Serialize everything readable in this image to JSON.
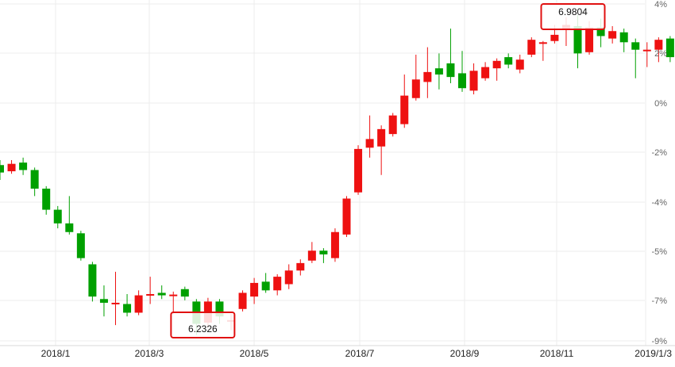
{
  "chart_data": {
    "type": "candlestick",
    "x_tick_labels": [
      "2018/1",
      "2018/3",
      "2018/5",
      "2018/7",
      "2018/9",
      "2018/11",
      "2019/1/3"
    ],
    "y_tick_labels": [
      "4%",
      "2%",
      "0%",
      "-2%",
      "-4%",
      "-5%",
      "-7%",
      "-9%"
    ],
    "ylim": [
      -9.6,
      4.0
    ],
    "grid": true,
    "up_color": "#ee1111",
    "down_color": "#00a000",
    "annotations": [
      {
        "label": "6.9804",
        "type": "high"
      },
      {
        "label": "6.2326",
        "type": "low"
      }
    ],
    "candles": [
      {
        "o": -2.5,
        "c": -2.8,
        "h": -2.3,
        "l": -3.1
      },
      {
        "o": -2.75,
        "c": -2.45,
        "h": -2.3,
        "l": -2.85
      },
      {
        "o": -2.4,
        "c": -2.7,
        "h": -2.2,
        "l": -2.9
      },
      {
        "o": -2.7,
        "c": -3.45,
        "h": -2.6,
        "l": -3.75
      },
      {
        "o": -3.45,
        "c": -4.3,
        "h": -3.35,
        "l": -4.5
      },
      {
        "o": -4.3,
        "c": -4.85,
        "h": -4.15,
        "l": -5.05
      },
      {
        "o": -4.85,
        "c": -5.2,
        "h": -3.75,
        "l": -5.3
      },
      {
        "o": -5.25,
        "c": -6.25,
        "h": -5.15,
        "l": -6.35
      },
      {
        "o": -6.5,
        "c": -7.8,
        "h": -6.4,
        "l": -8.0
      },
      {
        "o": -7.9,
        "c": -8.05,
        "h": -7.35,
        "l": -8.6
      },
      {
        "o": -8.05,
        "c": -8.05,
        "h": -6.8,
        "l": -8.95
      },
      {
        "o": -8.1,
        "c": -8.45,
        "h": -7.7,
        "l": -8.6
      },
      {
        "o": -8.45,
        "c": -7.75,
        "h": -7.55,
        "l": -8.55
      },
      {
        "o": -7.7,
        "c": -7.7,
        "h": -7.0,
        "l": -8.1
      },
      {
        "o": -7.65,
        "c": -7.75,
        "h": -7.35,
        "l": -7.9
      },
      {
        "o": -7.72,
        "c": -7.72,
        "h": -7.6,
        "l": -8.5
      },
      {
        "o": -7.5,
        "c": -7.8,
        "h": -7.4,
        "l": -7.95
      },
      {
        "o": -8.0,
        "c": -8.9,
        "h": -7.9,
        "l": -9.35
      },
      {
        "o": -8.85,
        "c": -8.0,
        "h": -7.85,
        "l": -9.05
      },
      {
        "o": -8.0,
        "c": -8.6,
        "h": -7.9,
        "l": -8.9
      },
      {
        "o": -8.75,
        "c": -8.75,
        "h": -8.5,
        "l": -9.15
      },
      {
        "o": -8.3,
        "c": -7.65,
        "h": -7.55,
        "l": -8.4
      },
      {
        "o": -7.8,
        "c": -7.25,
        "h": -7.05,
        "l": -8.1
      },
      {
        "o": -7.2,
        "c": -7.55,
        "h": -6.85,
        "l": -7.65
      },
      {
        "o": -7.55,
        "c": -7.0,
        "h": -6.9,
        "l": -7.75
      },
      {
        "o": -7.3,
        "c": -6.75,
        "h": -6.5,
        "l": -7.5
      },
      {
        "o": -6.75,
        "c": -6.45,
        "h": -6.3,
        "l": -6.95
      },
      {
        "o": -6.35,
        "c": -5.95,
        "h": -5.6,
        "l": -6.45
      },
      {
        "o": -5.95,
        "c": -6.1,
        "h": -5.85,
        "l": -6.45
      },
      {
        "o": -6.25,
        "c": -5.2,
        "h": -5.05,
        "l": -6.4
      },
      {
        "o": -5.3,
        "c": -3.85,
        "h": -3.75,
        "l": -5.4
      },
      {
        "o": -3.6,
        "c": -1.85,
        "h": -1.7,
        "l": -3.7
      },
      {
        "o": -1.8,
        "c": -1.45,
        "h": -0.5,
        "l": -2.2
      },
      {
        "o": -1.75,
        "c": -1.05,
        "h": -0.9,
        "l": -2.9
      },
      {
        "o": -1.25,
        "c": -0.5,
        "h": -0.4,
        "l": -1.35
      },
      {
        "o": -0.85,
        "c": 0.3,
        "h": 1.15,
        "l": -1.0
      },
      {
        "o": 0.2,
        "c": 0.95,
        "h": 1.95,
        "l": 0.1
      },
      {
        "o": 0.85,
        "c": 1.25,
        "h": 2.25,
        "l": 0.2
      },
      {
        "o": 1.4,
        "c": 1.15,
        "h": 2.0,
        "l": 0.55
      },
      {
        "o": 1.6,
        "c": 1.05,
        "h": 3.0,
        "l": 0.8
      },
      {
        "o": 1.2,
        "c": 0.6,
        "h": 2.1,
        "l": 0.45
      },
      {
        "o": 0.5,
        "c": 1.3,
        "h": 1.6,
        "l": 0.35
      },
      {
        "o": 1.0,
        "c": 1.45,
        "h": 1.65,
        "l": 0.9
      },
      {
        "o": 1.4,
        "c": 1.7,
        "h": 1.8,
        "l": 0.9
      },
      {
        "o": 1.85,
        "c": 1.55,
        "h": 2.0,
        "l": 1.4
      },
      {
        "o": 1.35,
        "c": 1.75,
        "h": 1.95,
        "l": 1.2
      },
      {
        "o": 1.95,
        "c": 2.55,
        "h": 2.65,
        "l": 1.85
      },
      {
        "o": 2.4,
        "c": 2.45,
        "h": 2.5,
        "l": 1.7
      },
      {
        "o": 2.5,
        "c": 2.75,
        "h": 3.15,
        "l": 2.4
      },
      {
        "o": 2.95,
        "c": 3.15,
        "h": 3.45,
        "l": 2.3
      },
      {
        "o": 3.1,
        "c": 2.0,
        "h": 3.55,
        "l": 1.4
      },
      {
        "o": 2.05,
        "c": 3.05,
        "h": 3.3,
        "l": 1.95
      },
      {
        "o": 3.05,
        "c": 2.7,
        "h": 3.4,
        "l": 2.25
      },
      {
        "o": 2.6,
        "c": 2.9,
        "h": 3.1,
        "l": 2.4
      },
      {
        "o": 2.85,
        "c": 2.45,
        "h": 3.0,
        "l": 2.05
      },
      {
        "o": 2.45,
        "c": 2.15,
        "h": 2.6,
        "l": 1.0
      },
      {
        "o": 2.15,
        "c": 2.15,
        "h": 2.45,
        "l": 1.45
      },
      {
        "o": 2.15,
        "c": 2.55,
        "h": 2.65,
        "l": 1.65
      },
      {
        "o": 2.6,
        "c": 1.85,
        "h": 2.7,
        "l": 1.65
      },
      {
        "o": 2.05,
        "c": 1.8,
        "h": 2.15,
        "l": 1.45
      }
    ]
  }
}
